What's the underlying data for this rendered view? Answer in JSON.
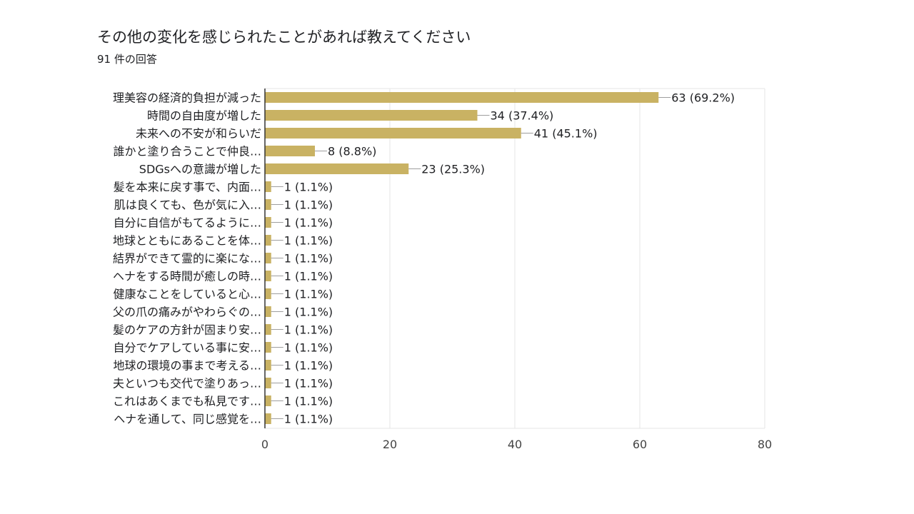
{
  "header": {
    "title": "その他の変化を感じられたことがあれば教えてください",
    "response_count": "91 件の回答"
  },
  "chart_data": {
    "type": "bar",
    "orientation": "horizontal",
    "title": "その他の変化を感じられたことがあれば教えてください",
    "xlabel": "",
    "ylabel": "",
    "xlim": [
      0,
      80
    ],
    "xticks": [
      0,
      20,
      40,
      60,
      80
    ],
    "grid": true,
    "bar_color": "#c9b263",
    "categories": [
      "理美容の経済的負担が減った",
      "時間の自由度が増した",
      "未来への不安が和らいだ",
      "誰かと塗り合うことで仲良…",
      "SDGsへの意識が増した",
      "髪を本来に戻す事で、内面…",
      "肌は良くても、色が気に入…",
      "自分に自信がもてるように…",
      "地球とともにあることを体…",
      "結界ができて霊的に楽にな…",
      "ヘナをする時間が癒しの時…",
      "健康なことをしていると心…",
      "父の爪の痛みがやわらぐの…",
      "髪のケアの方針が固まり安…",
      "自分でケアしている事に安…",
      "地球の環境の事まで考える…",
      "夫といつも交代で塗りあっ…",
      "これはあくまでも私見です…",
      "ヘナを通して、同じ感覚を…"
    ],
    "values": [
      63,
      34,
      41,
      8,
      23,
      1,
      1,
      1,
      1,
      1,
      1,
      1,
      1,
      1,
      1,
      1,
      1,
      1,
      1
    ],
    "data_labels": [
      "63 (69.2%)",
      "34 (37.4%)",
      "41 (45.1%)",
      "8 (8.8%)",
      "23 (25.3%)",
      "1 (1.1%)",
      "1 (1.1%)",
      "1 (1.1%)",
      "1 (1.1%)",
      "1 (1.1%)",
      "1 (1.1%)",
      "1 (1.1%)",
      "1 (1.1%)",
      "1 (1.1%)",
      "1 (1.1%)",
      "1 (1.1%)",
      "1 (1.1%)",
      "1 (1.1%)",
      "1 (1.1%)"
    ]
  }
}
